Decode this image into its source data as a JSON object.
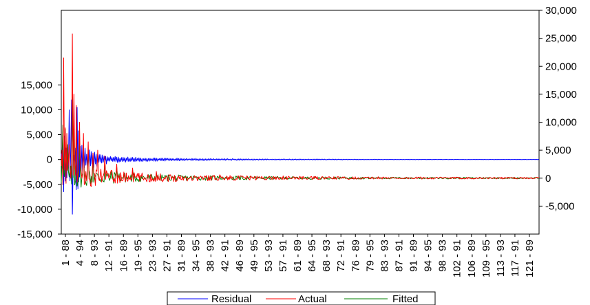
{
  "chart_data": {
    "type": "line",
    "title": "",
    "xlabel": "",
    "ylabel": "",
    "grid": false,
    "legend_position": "bottom",
    "x_tick_labels": [
      "1 - 88",
      "4 - 94",
      "8 - 93",
      "12 - 91",
      "16 - 89",
      "19 - 95",
      "23 - 93",
      "27 - 91",
      "31 - 89",
      "34 - 95",
      "38 - 93",
      "42 - 91",
      "46 - 89",
      "49 - 95",
      "53 - 93",
      "57 - 91",
      "61 - 89",
      "64 - 95",
      "68 - 93",
      "72 - 91",
      "76 - 89",
      "79 - 95",
      "83 - 93",
      "87 - 91",
      "91 - 89",
      "94 - 95",
      "98 - 93",
      "102 - 91",
      "106 - 89",
      "109 - 95",
      "113 - 93",
      "117 - 91",
      "121 - 89"
    ],
    "left_axis": {
      "ticks": [
        "-15,000",
        "-10,000",
        "-5,000",
        "0",
        "5,000",
        "10,000",
        "15,000"
      ],
      "values": [
        -15000,
        -10000,
        -5000,
        0,
        5000,
        10000,
        15000
      ],
      "ylim": [
        -15000,
        30000
      ]
    },
    "right_axis": {
      "ticks": [
        "-5,000",
        "0",
        "5,000",
        "10,000",
        "15,000",
        "20,000",
        "25,000",
        "30,000"
      ],
      "values": [
        -5000,
        0,
        5000,
        10000,
        15000,
        20000,
        25000,
        30000
      ],
      "ylim": [
        -10000,
        30000
      ]
    },
    "series": [
      {
        "name": "Residual",
        "axis": "left",
        "color": "#0000ff",
        "envelope_x": [
          0,
          3,
          6,
          9,
          10,
          12,
          15,
          18,
          20,
          22,
          26,
          30,
          35,
          40,
          50,
          60,
          80,
          100,
          140,
          200,
          260,
          400,
          500,
          603
        ],
        "envelope_amp": [
          1500,
          6500,
          5000,
          2000,
          12000,
          3000,
          1500,
          2500,
          11000,
          7000,
          3000,
          2600,
          2000,
          1800,
          1200,
          800,
          550,
          420,
          300,
          180,
          120,
          60,
          40,
          30
        ]
      },
      {
        "name": "Actual",
        "axis": "right",
        "color": "#ff0000",
        "baseline": 0,
        "peaks": [
          [
            1,
            5000
          ],
          [
            3,
            21500
          ],
          [
            5,
            9000
          ],
          [
            7,
            8000
          ],
          [
            10,
            6000
          ],
          [
            14,
            25800
          ],
          [
            16,
            15000
          ],
          [
            19,
            13000
          ],
          [
            23,
            10000
          ],
          [
            28,
            8000
          ],
          [
            34,
            6500
          ],
          [
            40,
            4500
          ],
          [
            46,
            5000
          ],
          [
            55,
            4000
          ],
          [
            70,
            2500
          ],
          [
            90,
            1800
          ],
          [
            120,
            1200
          ],
          [
            200,
            600
          ],
          [
            280,
            400
          ],
          [
            400,
            250
          ],
          [
            600,
            150
          ]
        ],
        "noise_x": [
          0,
          20,
          40,
          80,
          150,
          250,
          400,
          603
        ],
        "noise_amp": [
          3000,
          2500,
          1800,
          1000,
          600,
          350,
          200,
          150
        ]
      },
      {
        "name": "Fitted",
        "axis": "right",
        "color": "#008000",
        "baseline": 0,
        "peaks": [
          [
            1,
            4000
          ],
          [
            2,
            9500
          ],
          [
            5,
            8800
          ],
          [
            8,
            6000
          ],
          [
            14,
            14500
          ],
          [
            16,
            10000
          ],
          [
            19,
            8500
          ],
          [
            23,
            7000
          ],
          [
            28,
            6000
          ],
          [
            34,
            5000
          ],
          [
            40,
            4000
          ],
          [
            55,
            3000
          ],
          [
            70,
            2000
          ],
          [
            90,
            1500
          ],
          [
            120,
            1000
          ],
          [
            200,
            500
          ],
          [
            400,
            200
          ],
          [
            600,
            120
          ]
        ],
        "noise_x": [
          0,
          20,
          40,
          80,
          150,
          250,
          400,
          603
        ],
        "noise_amp": [
          2200,
          2000,
          1500,
          900,
          500,
          300,
          160,
          120
        ]
      }
    ]
  }
}
